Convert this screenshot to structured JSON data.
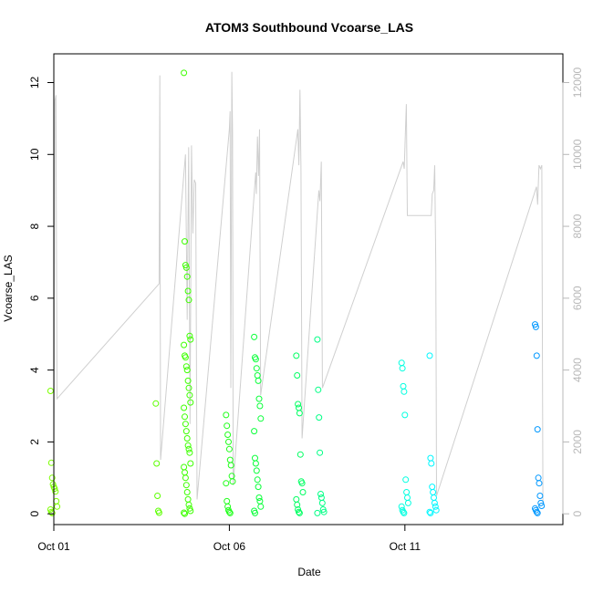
{
  "chart_data": {
    "type": "scatter",
    "title": "ATOM3 Southbound Vcoarse_LAS",
    "xlabel": "Date",
    "ylabel": "Vcoarse_LAS",
    "xlim": [
      0,
      14.5
    ],
    "ylim": [
      -0.3,
      12.8
    ],
    "x_ticks": [
      {
        "value": 0,
        "label": "Oct 01"
      },
      {
        "value": 5,
        "label": "Oct 06"
      },
      {
        "value": 10,
        "label": "Oct 11"
      }
    ],
    "y_ticks": [
      0,
      2,
      4,
      6,
      8,
      10,
      12
    ],
    "y2_ticks": [
      0,
      2000,
      4000,
      6000,
      8000,
      10000,
      12000
    ],
    "y2lim": [
      -300,
      12800
    ],
    "grid": false,
    "legend": "none",
    "colors": {
      "overlay": "#cfcfcf",
      "axis": "#000000",
      "right_axis": "#b8b8b8"
    },
    "flights": [
      {
        "x": 0.0,
        "color": "#7cff00",
        "values": [
          3.42,
          1.42,
          1.0,
          0.82,
          0.75,
          0.7,
          0.62,
          0.35,
          0.2,
          0.12,
          0.05,
          0.02
        ]
      },
      {
        "x": 3.0,
        "color": "#5cff00",
        "values": [
          3.07,
          1.4,
          0.5,
          0.08,
          0.03
        ]
      },
      {
        "x": 3.8,
        "color": "#3dff00",
        "values": [
          12.27,
          7.58,
          6.92,
          6.85,
          6.6,
          6.2,
          5.95,
          4.95,
          4.85,
          4.7,
          4.4,
          4.35,
          4.1,
          4.0,
          3.7,
          3.5,
          3.3,
          3.1,
          2.95,
          2.7,
          2.5,
          2.3,
          2.1,
          1.9,
          1.8,
          1.7,
          1.4,
          1.3,
          1.15,
          1.0,
          0.8,
          0.6,
          0.4,
          0.25,
          0.15,
          0.08,
          0.03,
          0.0
        ]
      },
      {
        "x": 5.0,
        "color": "#1fff1a",
        "values": [
          2.75,
          2.45,
          2.2,
          2.0,
          1.8,
          1.5,
          1.35,
          1.05,
          0.9,
          0.85,
          0.35,
          0.2,
          0.1,
          0.05,
          0.02
        ]
      },
      {
        "x": 5.8,
        "color": "#0aff3a",
        "values": [
          4.92,
          4.35,
          4.3,
          4.05,
          3.85,
          3.7,
          3.2,
          3.0,
          2.65,
          2.3,
          1.55,
          1.4,
          1.2,
          0.95,
          0.75,
          0.45,
          0.35,
          0.2,
          0.08,
          0.02
        ]
      },
      {
        "x": 7.0,
        "color": "#00ff62",
        "values": [
          4.4,
          3.85,
          3.05,
          2.95,
          2.8,
          1.65,
          0.9,
          0.85,
          0.6,
          0.4,
          0.25,
          0.12,
          0.05,
          0.02
        ]
      },
      {
        "x": 7.6,
        "color": "#00ff85",
        "values": [
          4.85,
          3.45,
          2.68,
          1.7,
          0.55,
          0.45,
          0.3,
          0.12,
          0.05,
          0.02
        ]
      },
      {
        "x": 10.0,
        "color": "#00ffe0",
        "values": [
          4.2,
          4.05,
          3.55,
          3.4,
          2.75,
          0.95,
          0.6,
          0.45,
          0.3,
          0.2,
          0.1,
          0.05,
          0.02
        ]
      },
      {
        "x": 10.8,
        "color": "#00f7ff",
        "values": [
          4.4,
          1.55,
          1.4,
          0.75,
          0.6,
          0.45,
          0.3,
          0.2,
          0.1,
          0.05,
          0.02
        ]
      },
      {
        "x": 13.8,
        "color": "#0098ff",
        "values": [
          5.27,
          5.2,
          4.4,
          2.35,
          1.0,
          0.85,
          0.5,
          0.3,
          0.22,
          0.15,
          0.1,
          0.05,
          0.02
        ]
      }
    ],
    "overlay_series": {
      "axis": "right",
      "color": "#cfcfcf",
      "points": [
        [
          0.0,
          300
        ],
        [
          0.03,
          11500
        ],
        [
          0.06,
          11650
        ],
        [
          0.09,
          3200
        ],
        [
          3.0,
          6400
        ],
        [
          3.02,
          12200
        ],
        [
          3.04,
          1500
        ],
        [
          3.75,
          10000
        ],
        [
          3.8,
          5400
        ],
        [
          3.84,
          10200
        ],
        [
          3.88,
          2500
        ],
        [
          3.92,
          10250
        ],
        [
          3.96,
          7800
        ],
        [
          4.0,
          9300
        ],
        [
          4.04,
          9200
        ],
        [
          4.08,
          400
        ],
        [
          5.0,
          10700
        ],
        [
          5.02,
          11200
        ],
        [
          5.04,
          3500
        ],
        [
          5.07,
          12300
        ],
        [
          5.09,
          10600
        ],
        [
          5.11,
          800
        ],
        [
          5.75,
          9500
        ],
        [
          5.77,
          8900
        ],
        [
          5.8,
          10500
        ],
        [
          5.83,
          9400
        ],
        [
          5.86,
          10700
        ],
        [
          5.89,
          3300
        ],
        [
          6.95,
          10700
        ],
        [
          6.98,
          9700
        ],
        [
          7.01,
          11800
        ],
        [
          7.04,
          9600
        ],
        [
          7.07,
          2100
        ],
        [
          7.55,
          9000
        ],
        [
          7.58,
          8700
        ],
        [
          7.62,
          9800
        ],
        [
          7.65,
          3500
        ],
        [
          9.95,
          9800
        ],
        [
          9.98,
          9600
        ],
        [
          10.02,
          10800
        ],
        [
          10.04,
          11400
        ],
        [
          10.07,
          8300
        ],
        [
          10.75,
          8300
        ],
        [
          10.78,
          8900
        ],
        [
          10.82,
          9000
        ],
        [
          10.85,
          9700
        ],
        [
          10.88,
          6900
        ],
        [
          10.9,
          500
        ],
        [
          13.75,
          9100
        ],
        [
          13.78,
          8600
        ],
        [
          13.82,
          9700
        ],
        [
          13.86,
          9600
        ],
        [
          13.9,
          9700
        ],
        [
          13.93,
          300
        ]
      ]
    }
  }
}
